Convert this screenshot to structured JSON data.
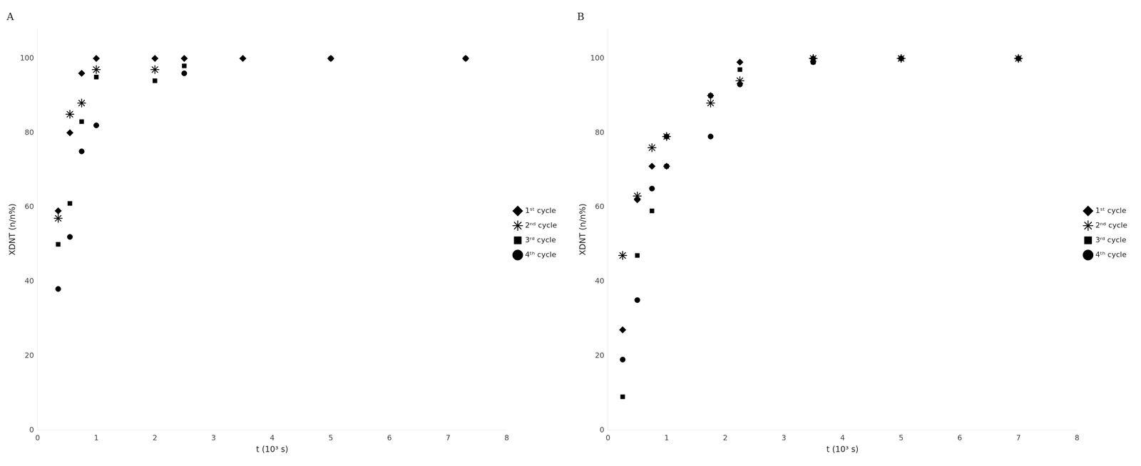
{
  "chart_data": [
    {
      "type": "scatter",
      "title": "A",
      "xlabel": "t (10³ s)",
      "ylabel": "XDNT (n/n%)",
      "xlim": [
        0,
        8
      ],
      "ylim": [
        0,
        108
      ],
      "xticks": [
        0,
        1,
        2,
        3,
        4,
        5,
        6,
        7,
        8
      ],
      "yticks": [
        0,
        20,
        40,
        60,
        80,
        100
      ],
      "grid": false,
      "legend": "right",
      "series": [
        {
          "name": "1ˢᵗ cycle",
          "color": "black",
          "marker": "diamond",
          "x": [
            0.35,
            0.55,
            0.75,
            1.0,
            2.0,
            2.5,
            3.5,
            5.0,
            7.3
          ],
          "values": [
            59,
            80,
            96,
            100,
            100,
            100,
            100,
            100,
            100
          ]
        },
        {
          "name": "2ⁿᵈ cycle",
          "color": "black",
          "marker": "star",
          "x": [
            0.35,
            0.55,
            0.75,
            1.0,
            2.0
          ],
          "values": [
            57,
            85,
            88,
            97,
            97
          ]
        },
        {
          "name": "3ʳᵈ cycle",
          "color": "black",
          "marker": "square",
          "x": [
            0.35,
            0.55,
            0.75,
            1.0,
            2.0,
            2.5
          ],
          "values": [
            50,
            61,
            83,
            95,
            94,
            98
          ]
        },
        {
          "name": "4ᵗʰ cycle",
          "color": "black",
          "marker": "circle",
          "x": [
            0.35,
            0.55,
            0.75,
            1.0,
            2.5,
            5.0,
            7.3
          ],
          "values": [
            38,
            52,
            75,
            82,
            96,
            100,
            100
          ]
        }
      ]
    },
    {
      "type": "scatter",
      "title": "B",
      "xlabel": "t (10³ s)",
      "ylabel": "XDNT (n/n%)",
      "xlim": [
        0,
        8
      ],
      "ylim": [
        0,
        108
      ],
      "xticks": [
        0,
        1,
        2,
        3,
        4,
        5,
        6,
        7,
        8
      ],
      "yticks": [
        0,
        20,
        40,
        60,
        80,
        100
      ],
      "grid": false,
      "legend": "right",
      "series": [
        {
          "name": "1ˢᵗ cycle",
          "color": "black",
          "marker": "diamond",
          "x": [
            0.25,
            0.5,
            0.75,
            1.0,
            1.75,
            2.25,
            3.5,
            5.0,
            7.0
          ],
          "values": [
            27,
            62,
            71,
            71,
            90,
            99,
            100,
            100,
            100
          ]
        },
        {
          "name": "2ⁿᵈ cycle",
          "color": "black",
          "marker": "star",
          "x": [
            0.25,
            0.5,
            0.75,
            1.0,
            1.75,
            2.25,
            3.5,
            5.0,
            7.0
          ],
          "values": [
            47,
            63,
            76,
            79,
            88,
            94,
            100,
            100,
            100
          ]
        },
        {
          "name": "3ʳᵈ cycle",
          "color": "black",
          "marker": "square",
          "x": [
            0.25,
            0.5,
            0.75,
            1.0,
            1.75,
            2.25,
            3.5,
            5.0,
            7.0
          ],
          "values": [
            9,
            47,
            59,
            71,
            90,
            97,
            99,
            100,
            100
          ]
        },
        {
          "name": "4ᵗʰ cycle",
          "color": "black",
          "marker": "circle",
          "x": [
            0.25,
            0.5,
            0.75,
            1.0,
            1.75,
            2.25,
            3.5,
            5.0,
            7.0
          ],
          "values": [
            19,
            35,
            65,
            79,
            79,
            93,
            99,
            100,
            100
          ]
        }
      ]
    }
  ]
}
